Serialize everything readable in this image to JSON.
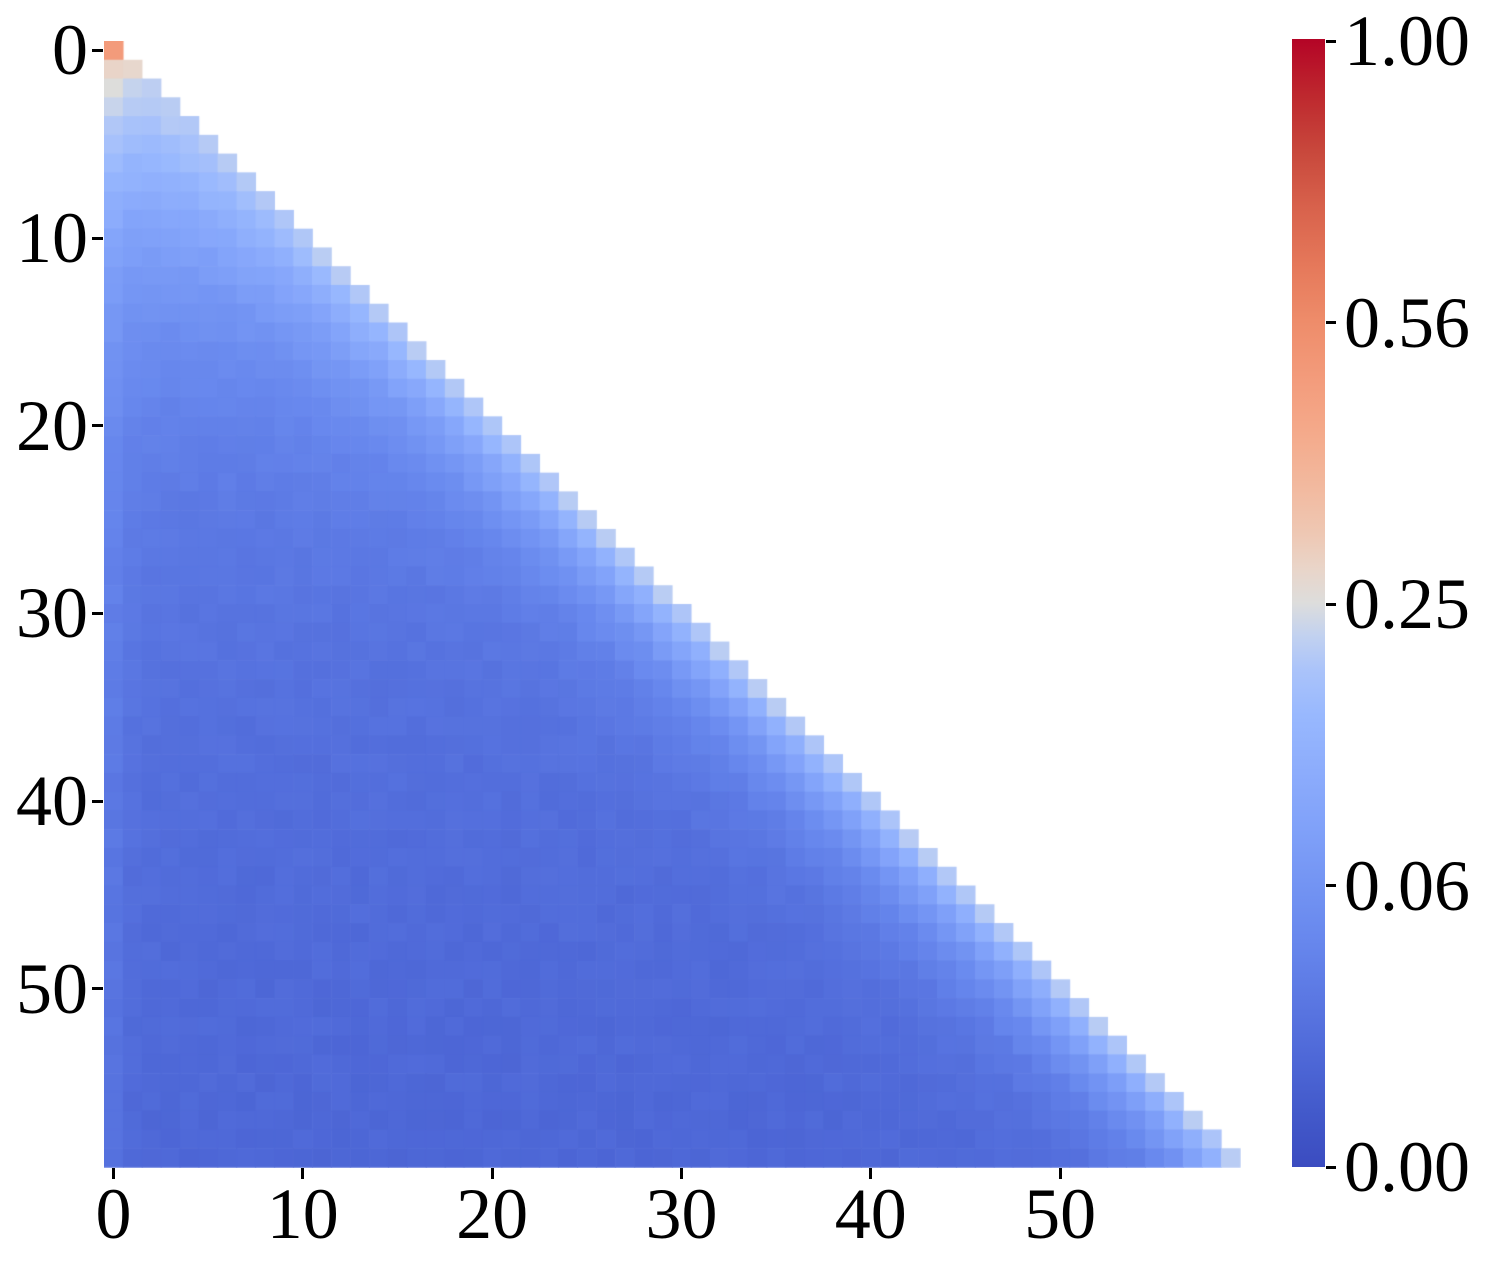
{
  "figure": {
    "background_color": "#ffffff",
    "text_color": "#000000",
    "title": ""
  },
  "chart_data": {
    "type": "heatmap",
    "title": "",
    "xlabel": "",
    "ylabel": "",
    "matrix_shape": [
      60,
      60
    ],
    "mask": "upper-triangle hidden; cell (row r, col c) drawn only where c <= r",
    "x_ticks": [
      0,
      10,
      20,
      30,
      40,
      50
    ],
    "x_tick_labels": [
      "0",
      "10",
      "20",
      "30",
      "40",
      "50"
    ],
    "y_ticks": [
      0,
      10,
      20,
      30,
      40,
      50
    ],
    "y_tick_labels": [
      "0",
      "10",
      "20",
      "30",
      "40",
      "50"
    ],
    "colormap": "coolwarm",
    "normalization": {
      "type": "power",
      "gamma": 2,
      "vmin": 0.0,
      "vmax": 1.0,
      "note": "colorbar position is sqrt(value); ticks equally spaced at values 1.00, 0.5625, 0.25, 0.0625, 0.00"
    },
    "colorbar": {
      "tick_labels": [
        "1.00",
        "0.56",
        "0.25",
        "0.06",
        "0.00"
      ],
      "tick_values": [
        1.0,
        0.5625,
        0.25,
        0.0625,
        0.0
      ],
      "tick_fractions_from_top": [
        0,
        0.25,
        0.5,
        0.75,
        1
      ]
    },
    "values_estimated_from_colors": true,
    "value_model": {
      "description": "v(r,c)=t(r,c)^2 with colormap position t = t_base(r) + (t_diag(r)-t_base(r))*exp(-(r-c)/blend_sigma) + col0_amp*exp(-c/col0_sigma)*(1-exp(-(r-c)/blend_sigma)) + noise",
      "t_base_params": {
        "c0": 0.07,
        "a1": 0.36,
        "s1": 8,
        "a2": 0.145,
        "s2": 33
      },
      "t_diag_params": {
        "c0": 0.452,
        "a": 0.255,
        "s": 0.75
      },
      "blend_sigma": 3.5,
      "col0_amp": 0.035,
      "col0_sigma": 0.8,
      "noise_t": 0.009,
      "noise_seed": 123456789,
      "anchor_values": {
        "cell_0_0": 0.5,
        "row_1_cells": 0.26,
        "row_2_cells": 0.21,
        "diagonal_asymptote": 0.2,
        "row_12_interior": 0.08,
        "row_25_interior": 0.02,
        "row_40_interior": 0.012,
        "bottom_rows_interior": 0.009,
        "bottom_row_col0": 0.018
      }
    },
    "coolwarm_lut": [
      [
        0.0,
        59,
        76,
        192
      ],
      [
        0.05,
        67,
        90,
        203
      ],
      [
        0.1,
        79,
        105,
        216
      ],
      [
        0.15,
        91,
        120,
        227
      ],
      [
        0.2,
        103,
        135,
        237
      ],
      [
        0.25,
        115,
        148,
        243
      ],
      [
        0.3,
        128,
        161,
        249
      ],
      [
        0.35,
        140,
        172,
        252
      ],
      [
        0.4,
        152,
        184,
        254
      ],
      [
        0.44,
        170,
        195,
        250
      ],
      [
        0.47,
        193,
        209,
        240
      ],
      [
        0.5,
        221,
        221,
        220
      ],
      [
        0.53,
        233,
        213,
        201
      ],
      [
        0.56,
        238,
        200,
        180
      ],
      [
        0.6,
        242,
        186,
        160
      ],
      [
        0.65,
        244,
        170,
        139
      ],
      [
        0.7,
        243,
        155,
        123
      ],
      [
        0.75,
        238,
        140,
        106
      ],
      [
        0.8,
        229,
        120,
        90
      ],
      [
        0.85,
        216,
        98,
        76
      ],
      [
        0.9,
        200,
        72,
        60
      ],
      [
        0.95,
        190,
        40,
        46
      ],
      [
        1.0,
        180,
        4,
        38
      ]
    ],
    "legend": null,
    "grid": false
  }
}
